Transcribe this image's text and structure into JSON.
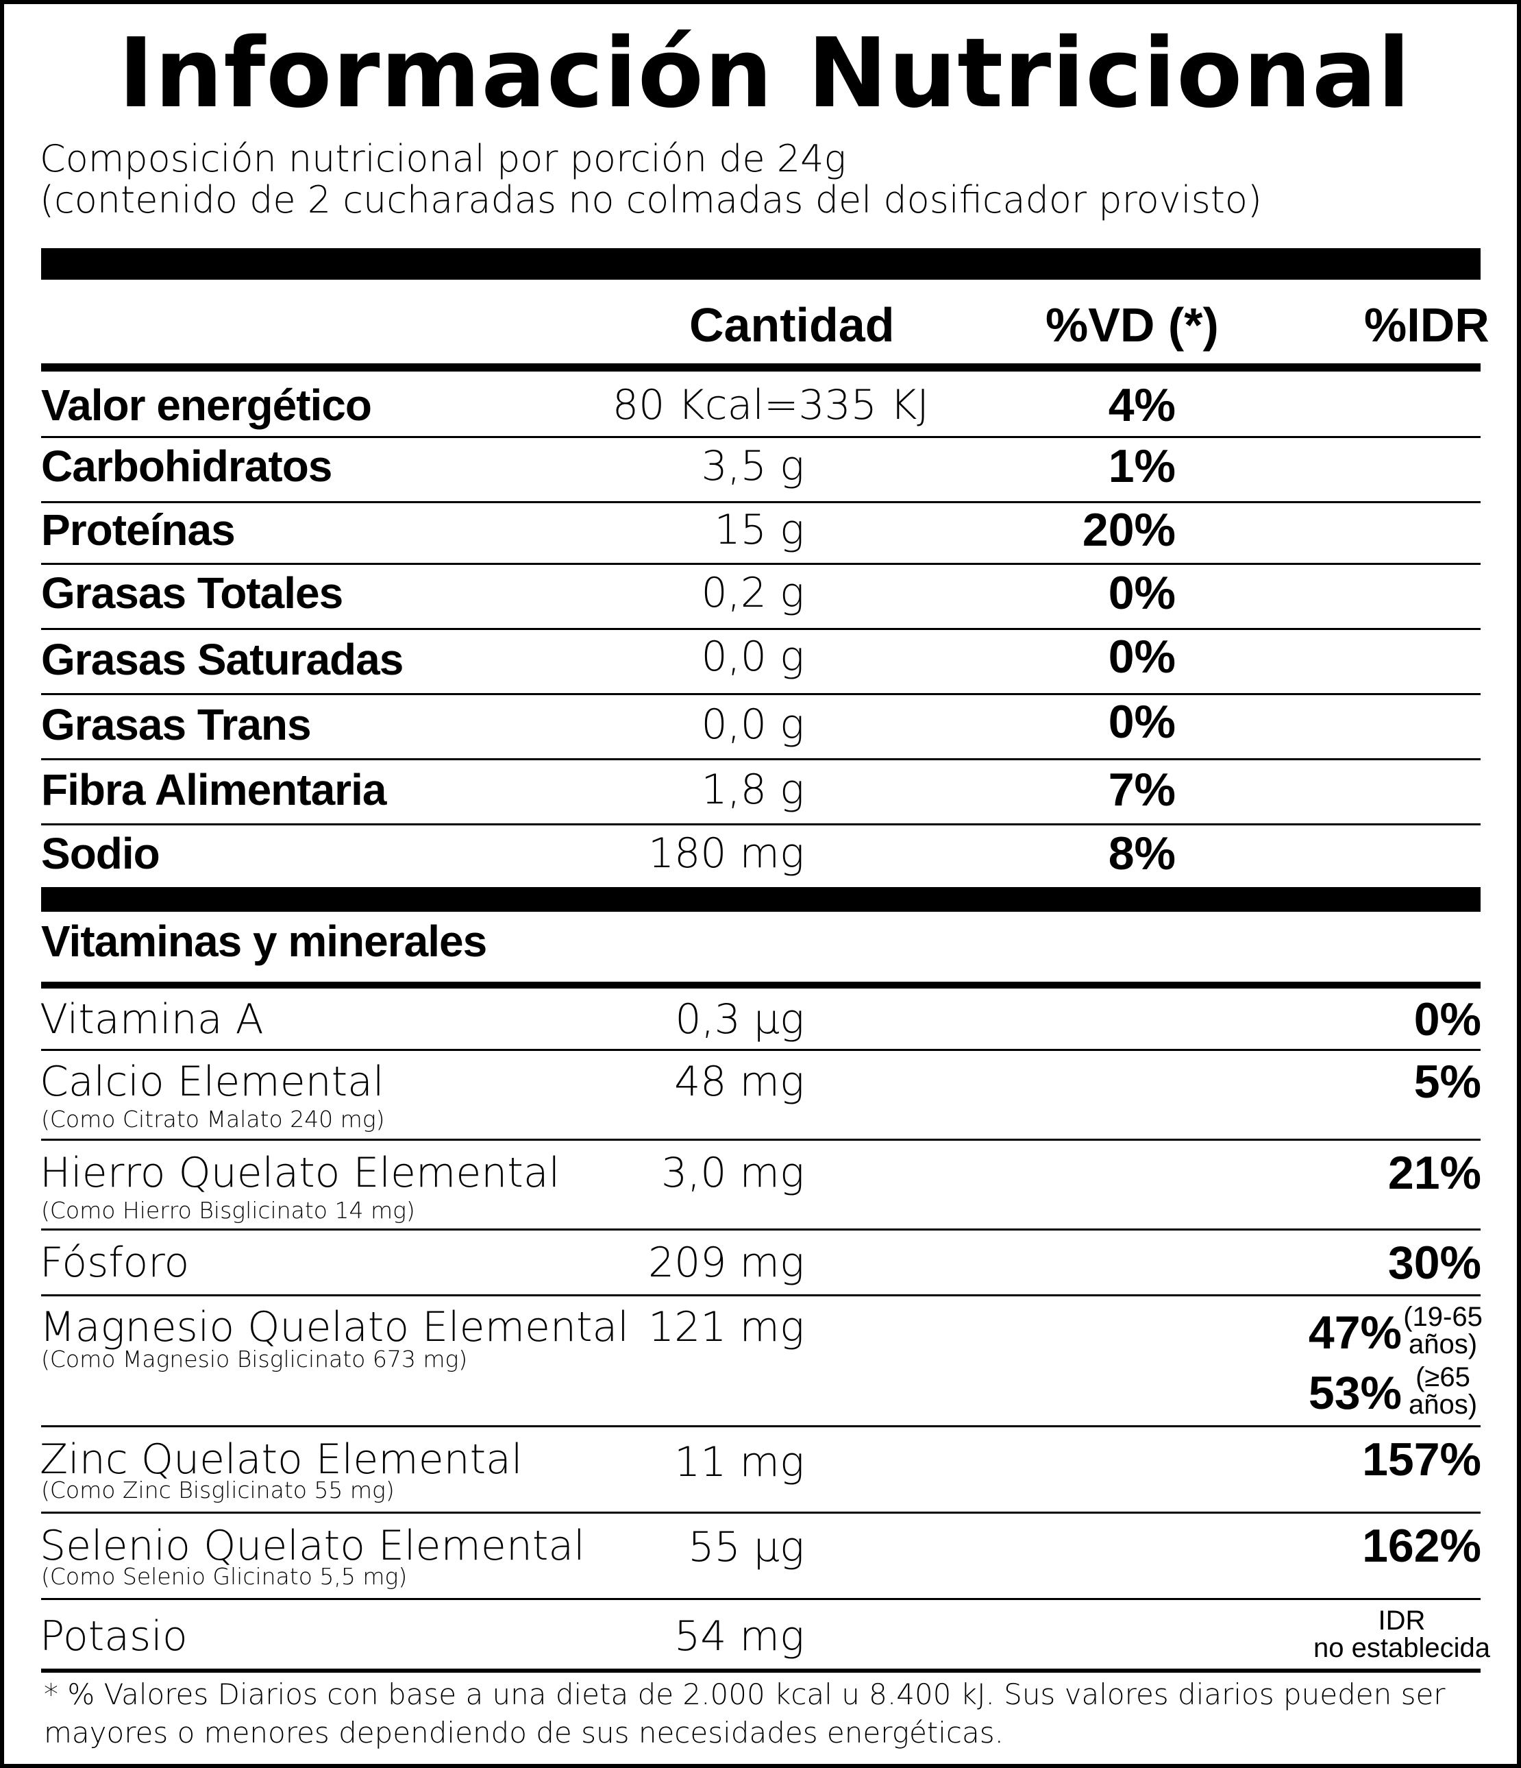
{
  "title": "Información Nutricional",
  "subtitle": {
    "line1": "Composición nutricional por porción de 24g",
    "line2": "(contenido de 2 cucharadas no colmadas del dosificador provisto)"
  },
  "headers": {
    "amount": "Cantidad",
    "vd": "%VD (*)",
    "idr": "%IDR"
  },
  "nutrients": [
    {
      "name": "Valor energético",
      "amount": "80 Kcal=335 KJ",
      "vd": "4%"
    },
    {
      "name": "Carbohidratos",
      "amount": "3,5 g",
      "vd": "1%"
    },
    {
      "name": "Proteínas",
      "amount": "15 g",
      "vd": "20%"
    },
    {
      "name": "Grasas Totales",
      "amount": "0,2 g",
      "vd": "0%"
    },
    {
      "name": "Grasas Saturadas",
      "amount": "0,0 g",
      "vd": "0%"
    },
    {
      "name": "Grasas Trans",
      "amount": "0,0 g",
      "vd": "0%"
    },
    {
      "name": "Fibra Alimentaria",
      "amount": "1,8 g",
      "vd": "7%"
    },
    {
      "name": "Sodio",
      "amount": "180 mg",
      "vd": "8%"
    }
  ],
  "vitamins_heading": "Vitaminas y minerales",
  "vitamins": [
    {
      "name": "Vitamina A",
      "amount": "0,3 µg",
      "idr": "0%"
    },
    {
      "name": "Calcio Elemental",
      "note": "(Como Citrato Malato 240 mg)",
      "amount": "48 mg",
      "idr": "5%"
    },
    {
      "name": "Hierro Quelato Elemental",
      "note": "(Como Hierro Bisglicinato 14 mg)",
      "amount": "3,0 mg",
      "idr": "21%"
    },
    {
      "name": "Fósforo",
      "amount": "209 mg",
      "idr": "30%"
    },
    {
      "name": "Magnesio Quelato Elemental",
      "note": "(Como Magnesio Bisglicinato 673 mg)",
      "amount": "121 mg",
      "idr": "47%",
      "idr_age_line1": "(19-65",
      "idr_age_line2": "años)",
      "idr2": "53%",
      "idr2_age_line1": "(≥65",
      "idr2_age_line2": "años)"
    },
    {
      "name": "Zinc Quelato Elemental",
      "note": "(Como Zinc Bisglicinato 55 mg)",
      "amount": "11 mg",
      "idr": "157%"
    },
    {
      "name": "Selenio Quelato Elemental",
      "note": "(Como Selenio Glicinato 5,5 mg)",
      "amount": "55 µg",
      "idr": "162%"
    },
    {
      "name": "Potasio",
      "amount": "54 mg",
      "idr_line1": "IDR",
      "idr_line2": "no establecida"
    }
  ],
  "footer": "* % Valores Diarios con base a una dieta de 2.000 kcal u 8.400 kJ. Sus valores diarios pueden ser mayores o menores dependiendo de sus necesidades energéticas."
}
